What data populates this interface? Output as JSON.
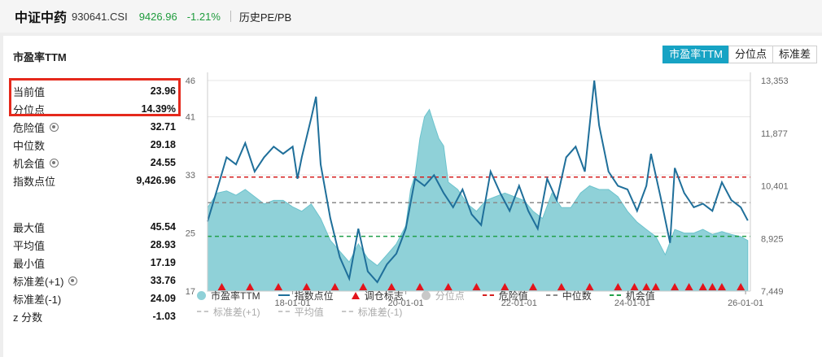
{
  "header": {
    "index_name": "中证中药",
    "code": "930641.CSI",
    "price": "9426.96",
    "change": "-1.21%",
    "history_link": "历史PE/PB"
  },
  "metric": {
    "title": "市盈率TTM",
    "buttons": [
      "市盈率TTM",
      "分位点",
      "标准差"
    ],
    "active": 0
  },
  "stats": [
    {
      "label": "当前值",
      "value": "23.96"
    },
    {
      "label": "分位点",
      "value": "14.39%"
    },
    {
      "label": "危险值",
      "value": "32.71",
      "gear": true
    },
    {
      "label": "中位数",
      "value": "29.18"
    },
    {
      "label": "机会值",
      "value": "24.55",
      "gear": true
    },
    {
      "label": "指数点位",
      "value": "9,426.96"
    }
  ],
  "stats2": [
    {
      "label": "最大值",
      "value": "45.54"
    },
    {
      "label": "平均值",
      "value": "28.93"
    },
    {
      "label": "最小值",
      "value": "17.19"
    },
    {
      "label": "标准差(+1)",
      "value": "33.76",
      "gear": true
    },
    {
      "label": "标准差(-1)",
      "value": "24.09"
    },
    {
      "label": "z 分数",
      "value": "-1.03"
    }
  ],
  "colors": {
    "accent": "#17a3c4",
    "area": "#8fd1d8",
    "index_line": "#1f6f9a",
    "danger": "#d62020",
    "median": "#8a8a8a",
    "opportunity": "#22a04a",
    "marker": "#e3141c",
    "highlight_box": "#e5291c"
  },
  "legend": {
    "row1": [
      {
        "type": "dot",
        "label": "市盈率TTM",
        "color": "#8fd1d8"
      },
      {
        "type": "line",
        "label": "指数点位",
        "color": "#1f6f9a"
      },
      {
        "type": "tri",
        "label": "调仓标志",
        "color": "#e3141c"
      },
      {
        "type": "dot",
        "label": "分位点",
        "color": "#c8c8c8",
        "dim": true
      },
      {
        "type": "dash",
        "label": "危险值",
        "color": "#d62020"
      },
      {
        "type": "dash",
        "label": "中位数",
        "color": "#8a8a8a"
      },
      {
        "type": "dash",
        "label": "机会值",
        "color": "#22a04a"
      }
    ],
    "row2": [
      {
        "type": "dash",
        "label": "标准差(+1)",
        "color": "#c8c8c8",
        "dim": true
      },
      {
        "type": "dash",
        "label": "平均值",
        "color": "#c8c8c8",
        "dim": true
      },
      {
        "type": "dash",
        "label": "标准差(-1)",
        "color": "#c8c8c8",
        "dim": true
      }
    ]
  },
  "chart_data": {
    "type": "area",
    "x_start": "2016-07-01",
    "x_end": "2026-02-01",
    "x_ticks": [
      "18-01-01",
      "20-01-01",
      "22-01-01",
      "24-01-01",
      "26-01-01"
    ],
    "y_left": {
      "label": "",
      "min": 17,
      "max": 46,
      "ticks": [
        17,
        25,
        33,
        41,
        46
      ]
    },
    "y_right": {
      "label": "",
      "min": 7449,
      "max": 13353,
      "ticks": [
        "7,449",
        "8,925",
        "10,401",
        "11,877",
        "13,353"
      ]
    },
    "reference_lines": {
      "danger": 32.71,
      "median": 29.18,
      "opportunity": 24.55
    },
    "series": [
      {
        "name": "市盈率TTM",
        "axis": "left",
        "points": [
          [
            "2016-07-01",
            28.5
          ],
          [
            "2016-09-01",
            30.5
          ],
          [
            "2016-11-01",
            30.8
          ],
          [
            "2017-01-01",
            30.2
          ],
          [
            "2017-03-01",
            31.0
          ],
          [
            "2017-05-01",
            30.0
          ],
          [
            "2017-07-01",
            29.0
          ],
          [
            "2017-09-01",
            29.5
          ],
          [
            "2017-11-01",
            29.5
          ],
          [
            "2018-01-01",
            28.6
          ],
          [
            "2018-03-01",
            28.0
          ],
          [
            "2018-05-01",
            29.0
          ],
          [
            "2018-07-01",
            27.0
          ],
          [
            "2018-09-01",
            24.0
          ],
          [
            "2018-11-01",
            22.5
          ],
          [
            "2019-01-01",
            21.0
          ],
          [
            "2019-03-01",
            23.5
          ],
          [
            "2019-05-01",
            21.5
          ],
          [
            "2019-07-01",
            20.5
          ],
          [
            "2019-09-01",
            22.0
          ],
          [
            "2019-11-01",
            23.5
          ],
          [
            "2020-01-01",
            26.0
          ],
          [
            "2020-02-01",
            31.0
          ],
          [
            "2020-03-01",
            33.0
          ],
          [
            "2020-04-01",
            38.0
          ],
          [
            "2020-05-01",
            41.0
          ],
          [
            "2020-06-01",
            42.0
          ],
          [
            "2020-07-01",
            40.0
          ],
          [
            "2020-08-01",
            38.0
          ],
          [
            "2020-09-01",
            37.0
          ],
          [
            "2020-10-01",
            32.0
          ],
          [
            "2020-12-01",
            31.0
          ],
          [
            "2021-02-01",
            29.0
          ],
          [
            "2021-04-01",
            28.0
          ],
          [
            "2021-06-01",
            29.5
          ],
          [
            "2021-08-01",
            30.0
          ],
          [
            "2021-10-01",
            30.5
          ],
          [
            "2021-12-01",
            30.0
          ],
          [
            "2022-02-01",
            29.5
          ],
          [
            "2022-04-01",
            28.0
          ],
          [
            "2022-06-01",
            27.0
          ],
          [
            "2022-08-01",
            30.5
          ],
          [
            "2022-10-01",
            28.5
          ],
          [
            "2022-12-01",
            28.5
          ],
          [
            "2023-02-01",
            30.5
          ],
          [
            "2023-04-01",
            31.5
          ],
          [
            "2023-06-01",
            31.0
          ],
          [
            "2023-08-01",
            31.0
          ],
          [
            "2023-10-01",
            30.0
          ],
          [
            "2023-12-01",
            28.0
          ],
          [
            "2024-02-01",
            26.5
          ],
          [
            "2024-04-01",
            25.5
          ],
          [
            "2024-06-01",
            24.5
          ],
          [
            "2024-08-01",
            22.0
          ],
          [
            "2024-10-01",
            25.5
          ],
          [
            "2024-12-01",
            25.0
          ],
          [
            "2025-02-01",
            25.0
          ],
          [
            "2025-04-01",
            25.5
          ],
          [
            "2025-06-01",
            24.8
          ],
          [
            "2025-08-01",
            25.2
          ],
          [
            "2025-10-01",
            24.8
          ],
          [
            "2025-12-01",
            24.5
          ],
          [
            "2026-01-15",
            23.96
          ]
        ]
      },
      {
        "name": "指数点位",
        "axis": "right",
        "points": [
          [
            "2016-07-01",
            9400
          ],
          [
            "2016-09-01",
            10300
          ],
          [
            "2016-11-01",
            11200
          ],
          [
            "2017-01-01",
            11000
          ],
          [
            "2017-03-01",
            11600
          ],
          [
            "2017-05-01",
            10800
          ],
          [
            "2017-07-01",
            11200
          ],
          [
            "2017-09-01",
            11500
          ],
          [
            "2017-11-01",
            11300
          ],
          [
            "2018-01-01",
            11500
          ],
          [
            "2018-02-01",
            10600
          ],
          [
            "2018-03-01",
            11200
          ],
          [
            "2018-05-01",
            12300
          ],
          [
            "2018-06-01",
            12900
          ],
          [
            "2018-07-01",
            11000
          ],
          [
            "2018-09-01",
            9500
          ],
          [
            "2018-11-01",
            8400
          ],
          [
            "2019-01-01",
            7800
          ],
          [
            "2019-03-01",
            9200
          ],
          [
            "2019-05-01",
            8000
          ],
          [
            "2019-07-01",
            7700
          ],
          [
            "2019-09-01",
            8200
          ],
          [
            "2019-11-01",
            8500
          ],
          [
            "2020-01-01",
            9200
          ],
          [
            "2020-03-01",
            10600
          ],
          [
            "2020-05-01",
            10400
          ],
          [
            "2020-07-01",
            10700
          ],
          [
            "2020-09-01",
            10200
          ],
          [
            "2020-11-01",
            9800
          ],
          [
            "2021-01-01",
            10300
          ],
          [
            "2021-03-01",
            9600
          ],
          [
            "2021-05-01",
            9300
          ],
          [
            "2021-07-01",
            10800
          ],
          [
            "2021-09-01",
            10200
          ],
          [
            "2021-11-01",
            9700
          ],
          [
            "2022-01-01",
            10400
          ],
          [
            "2022-03-01",
            9700
          ],
          [
            "2022-05-01",
            9200
          ],
          [
            "2022-07-01",
            10600
          ],
          [
            "2022-09-01",
            10000
          ],
          [
            "2022-11-01",
            11200
          ],
          [
            "2023-01-01",
            11500
          ],
          [
            "2023-03-01",
            10800
          ],
          [
            "2023-05-01",
            13353
          ],
          [
            "2023-06-01",
            12100
          ],
          [
            "2023-08-01",
            10800
          ],
          [
            "2023-10-01",
            10400
          ],
          [
            "2023-12-01",
            10300
          ],
          [
            "2024-02-01",
            9700
          ],
          [
            "2024-04-01",
            10400
          ],
          [
            "2024-05-01",
            11300
          ],
          [
            "2024-07-01",
            10100
          ],
          [
            "2024-09-01",
            8800
          ],
          [
            "2024-10-01",
            10900
          ],
          [
            "2024-12-01",
            10200
          ],
          [
            "2025-02-01",
            9800
          ],
          [
            "2025-04-01",
            9900
          ],
          [
            "2025-06-01",
            9700
          ],
          [
            "2025-08-01",
            10500
          ],
          [
            "2025-10-01",
            10000
          ],
          [
            "2025-12-01",
            9800
          ],
          [
            "2026-01-15",
            9426.96
          ]
        ]
      }
    ],
    "rebalance_markers": [
      "2016-10-01",
      "2017-04-01",
      "2017-10-01",
      "2018-04-01",
      "2018-10-01",
      "2019-04-01",
      "2019-10-01",
      "2020-04-01",
      "2020-10-01",
      "2021-04-01",
      "2021-10-01",
      "2022-04-01",
      "2022-10-01",
      "2023-04-01",
      "2023-10-01",
      "2024-01-15",
      "2024-04-01",
      "2024-06-01",
      "2024-10-01",
      "2025-01-01",
      "2025-04-01",
      "2025-06-01",
      "2025-08-01",
      "2025-12-01"
    ]
  }
}
